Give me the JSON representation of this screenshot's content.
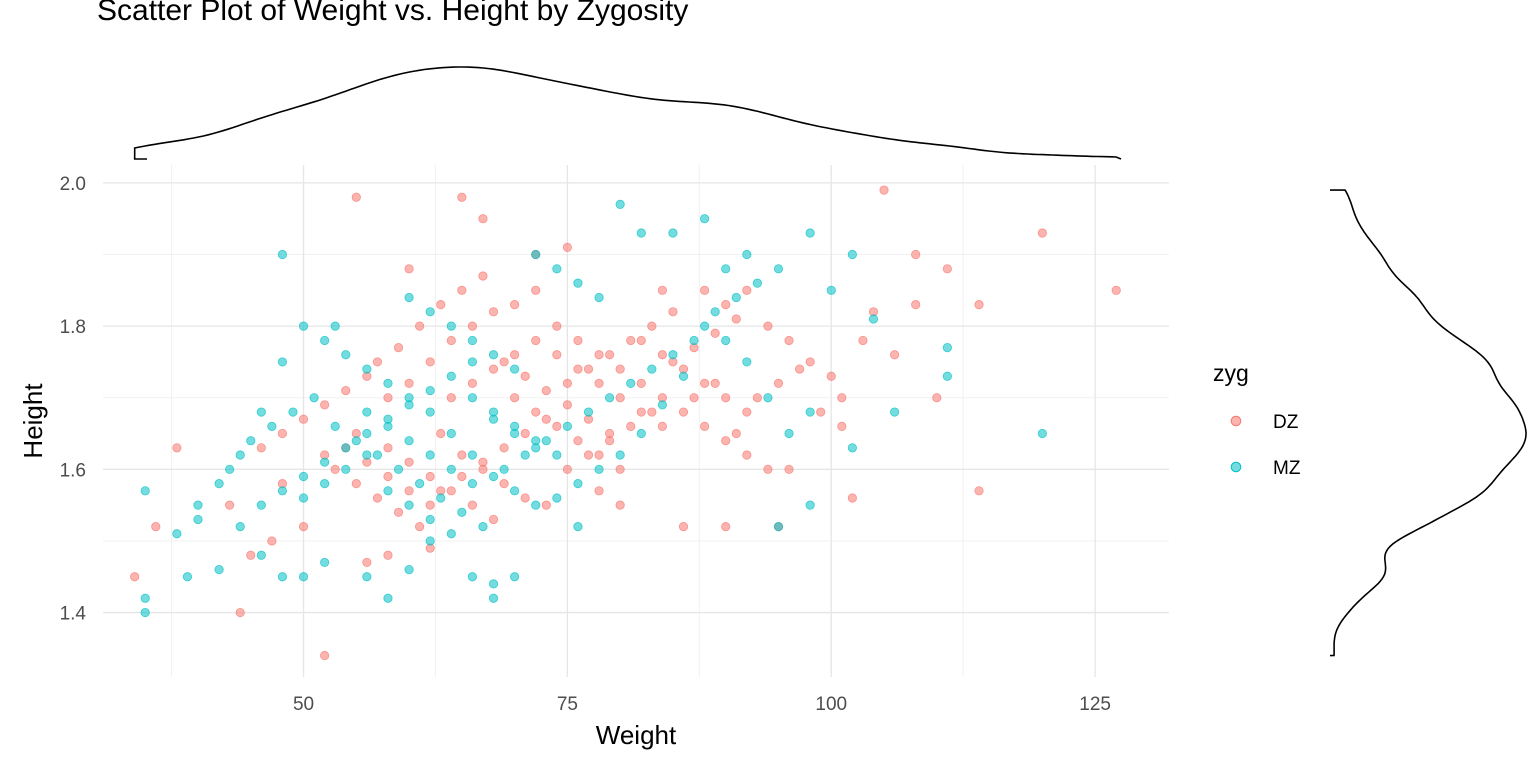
{
  "chart_data": {
    "type": "scatter",
    "title": "Scatter Plot of Weight vs. Height by Zygosity",
    "xlabel": "Weight",
    "ylabel": "Height",
    "xlim": [
      31,
      132
    ],
    "ylim": [
      1.31,
      2.025
    ],
    "x_ticks": [
      50,
      75,
      100,
      125
    ],
    "x_tick_labels": [
      "50",
      "75",
      "100",
      "125"
    ],
    "y_ticks": [
      1.4,
      1.6,
      1.8,
      2.0
    ],
    "y_tick_labels": [
      "1.4",
      "1.6",
      "1.8",
      "2.0"
    ],
    "grid": true,
    "legend": {
      "title": "zyg",
      "position": "right"
    },
    "marginal_densities": {
      "top": "Weight",
      "right": "Height"
    },
    "series": [
      {
        "name": "DZ",
        "color": "#F8766D",
        "points": [
          [
            34,
            1.45
          ],
          [
            36,
            1.52
          ],
          [
            38,
            1.63
          ],
          [
            44,
            1.4
          ],
          [
            52,
            1.34
          ],
          [
            55,
            1.98
          ],
          [
            60,
            1.88
          ],
          [
            65,
            1.98
          ],
          [
            67,
            1.95
          ],
          [
            72,
            1.9
          ],
          [
            75,
            1.91
          ],
          [
            84,
            1.85
          ],
          [
            88,
            1.85
          ],
          [
            90,
            1.83
          ],
          [
            92,
            1.85
          ],
          [
            94,
            1.8
          ],
          [
            96,
            1.78
          ],
          [
            98,
            1.75
          ],
          [
            100,
            1.73
          ],
          [
            101,
            1.7
          ],
          [
            105,
            1.99
          ],
          [
            108,
            1.9
          ],
          [
            111,
            1.88
          ],
          [
            114,
            1.83
          ],
          [
            120,
            1.93
          ],
          [
            127,
            1.85
          ],
          [
            103,
            1.78
          ],
          [
            104,
            1.82
          ],
          [
            106,
            1.76
          ],
          [
            102,
            1.56
          ],
          [
            114,
            1.57
          ],
          [
            110,
            1.7
          ],
          [
            108,
            1.83
          ],
          [
            96,
            1.6
          ],
          [
            95,
            1.52
          ],
          [
            90,
            1.52
          ],
          [
            86,
            1.52
          ],
          [
            80,
            1.55
          ],
          [
            78,
            1.57
          ],
          [
            62,
            1.49
          ],
          [
            58,
            1.48
          ],
          [
            56,
            1.47
          ],
          [
            50,
            1.52
          ],
          [
            47,
            1.5
          ],
          [
            45,
            1.48
          ],
          [
            43,
            1.55
          ],
          [
            48,
            1.58
          ],
          [
            52,
            1.62
          ],
          [
            55,
            1.65
          ],
          [
            58,
            1.7
          ],
          [
            60,
            1.72
          ],
          [
            62,
            1.75
          ],
          [
            64,
            1.78
          ],
          [
            66,
            1.8
          ],
          [
            68,
            1.82
          ],
          [
            70,
            1.83
          ],
          [
            72,
            1.85
          ],
          [
            74,
            1.8
          ],
          [
            76,
            1.78
          ],
          [
            78,
            1.76
          ],
          [
            80,
            1.74
          ],
          [
            82,
            1.72
          ],
          [
            84,
            1.7
          ],
          [
            86,
            1.68
          ],
          [
            88,
            1.66
          ],
          [
            90,
            1.64
          ],
          [
            92,
            1.62
          ],
          [
            94,
            1.6
          ],
          [
            63,
            1.65
          ],
          [
            65,
            1.62
          ],
          [
            67,
            1.6
          ],
          [
            69,
            1.58
          ],
          [
            71,
            1.56
          ],
          [
            73,
            1.55
          ],
          [
            75,
            1.6
          ],
          [
            77,
            1.62
          ],
          [
            79,
            1.64
          ],
          [
            81,
            1.66
          ],
          [
            83,
            1.68
          ],
          [
            85,
            1.75
          ],
          [
            87,
            1.77
          ],
          [
            89,
            1.79
          ],
          [
            91,
            1.81
          ],
          [
            93,
            1.7
          ],
          [
            95,
            1.72
          ],
          [
            97,
            1.74
          ],
          [
            99,
            1.68
          ],
          [
            101,
            1.66
          ],
          [
            57,
            1.75
          ],
          [
            59,
            1.77
          ],
          [
            61,
            1.8
          ],
          [
            63,
            1.83
          ],
          [
            65,
            1.85
          ],
          [
            67,
            1.87
          ],
          [
            69,
            1.75
          ],
          [
            71,
            1.73
          ],
          [
            73,
            1.71
          ],
          [
            75,
            1.69
          ],
          [
            77,
            1.67
          ],
          [
            79,
            1.65
          ],
          [
            53,
            1.6
          ],
          [
            55,
            1.58
          ],
          [
            57,
            1.56
          ],
          [
            59,
            1.54
          ],
          [
            61,
            1.52
          ],
          [
            63,
            1.57
          ],
          [
            65,
            1.59
          ],
          [
            67,
            1.61
          ],
          [
            69,
            1.63
          ],
          [
            71,
            1.65
          ],
          [
            73,
            1.67
          ],
          [
            75,
            1.72
          ],
          [
            77,
            1.74
          ],
          [
            79,
            1.76
          ],
          [
            81,
            1.78
          ],
          [
            83,
            1.8
          ],
          [
            85,
            1.82
          ],
          [
            87,
            1.7
          ],
          [
            89,
            1.72
          ],
          [
            91,
            1.65
          ],
          [
            46,
            1.63
          ],
          [
            48,
            1.65
          ],
          [
            50,
            1.67
          ],
          [
            52,
            1.69
          ],
          [
            54,
            1.71
          ],
          [
            56,
            1.73
          ],
          [
            58,
            1.63
          ],
          [
            60,
            1.61
          ],
          [
            62,
            1.59
          ],
          [
            64,
            1.57
          ],
          [
            66,
            1.55
          ],
          [
            68,
            1.53
          ],
          [
            70,
            1.7
          ],
          [
            72,
            1.68
          ],
          [
            74,
            1.66
          ],
          [
            76,
            1.64
          ],
          [
            78,
            1.62
          ],
          [
            80,
            1.6
          ],
          [
            82,
            1.78
          ],
          [
            84,
            1.76
          ],
          [
            86,
            1.74
          ],
          [
            88,
            1.72
          ],
          [
            90,
            1.7
          ],
          [
            92,
            1.68
          ],
          [
            54,
            1.63
          ],
          [
            56,
            1.61
          ],
          [
            58,
            1.59
          ],
          [
            60,
            1.57
          ],
          [
            62,
            1.55
          ],
          [
            64,
            1.7
          ],
          [
            66,
            1.72
          ],
          [
            68,
            1.74
          ],
          [
            70,
            1.76
          ],
          [
            72,
            1.78
          ],
          [
            74,
            1.76
          ],
          [
            76,
            1.74
          ],
          [
            78,
            1.72
          ],
          [
            80,
            1.7
          ],
          [
            82,
            1.68
          ],
          [
            84,
            1.66
          ]
        ]
      },
      {
        "name": "MZ",
        "color": "#00BFC4",
        "points": [
          [
            35,
            1.57
          ],
          [
            35,
            1.42
          ],
          [
            35,
            1.4
          ],
          [
            39,
            1.45
          ],
          [
            40,
            1.55
          ],
          [
            42,
            1.46
          ],
          [
            44,
            1.52
          ],
          [
            46,
            1.48
          ],
          [
            48,
            1.9
          ],
          [
            48,
            1.45
          ],
          [
            50,
            1.45
          ],
          [
            52,
            1.47
          ],
          [
            53,
            1.8
          ],
          [
            56,
            1.45
          ],
          [
            58,
            1.42
          ],
          [
            60,
            1.46
          ],
          [
            62,
            1.5
          ],
          [
            66,
            1.45
          ],
          [
            68,
            1.44
          ],
          [
            68,
            1.42
          ],
          [
            70,
            1.45
          ],
          [
            76,
            1.52
          ],
          [
            80,
            1.97
          ],
          [
            82,
            1.93
          ],
          [
            85,
            1.93
          ],
          [
            88,
            1.95
          ],
          [
            90,
            1.88
          ],
          [
            92,
            1.9
          ],
          [
            95,
            1.52
          ],
          [
            98,
            1.93
          ],
          [
            98,
            1.55
          ],
          [
            100,
            1.85
          ],
          [
            102,
            1.9
          ],
          [
            104,
            1.81
          ],
          [
            106,
            1.68
          ],
          [
            102,
            1.63
          ],
          [
            111,
            1.77
          ],
          [
            111,
            1.73
          ],
          [
            120,
            1.65
          ],
          [
            98,
            1.68
          ],
          [
            96,
            1.65
          ],
          [
            94,
            1.7
          ],
          [
            92,
            1.75
          ],
          [
            90,
            1.78
          ],
          [
            88,
            1.8
          ],
          [
            86,
            1.73
          ],
          [
            84,
            1.69
          ],
          [
            82,
            1.65
          ],
          [
            80,
            1.62
          ],
          [
            78,
            1.6
          ],
          [
            76,
            1.58
          ],
          [
            74,
            1.56
          ],
          [
            72,
            1.55
          ],
          [
            70,
            1.57
          ],
          [
            68,
            1.59
          ],
          [
            66,
            1.62
          ],
          [
            64,
            1.65
          ],
          [
            62,
            1.68
          ],
          [
            60,
            1.7
          ],
          [
            58,
            1.72
          ],
          [
            56,
            1.74
          ],
          [
            54,
            1.76
          ],
          [
            52,
            1.78
          ],
          [
            50,
            1.8
          ],
          [
            48,
            1.75
          ],
          [
            46,
            1.68
          ],
          [
            44,
            1.62
          ],
          [
            42,
            1.58
          ],
          [
            40,
            1.53
          ],
          [
            38,
            1.51
          ],
          [
            43,
            1.6
          ],
          [
            45,
            1.64
          ],
          [
            47,
            1.66
          ],
          [
            49,
            1.68
          ],
          [
            51,
            1.7
          ],
          [
            53,
            1.66
          ],
          [
            55,
            1.64
          ],
          [
            57,
            1.62
          ],
          [
            59,
            1.6
          ],
          [
            61,
            1.58
          ],
          [
            63,
            1.56
          ],
          [
            65,
            1.54
          ],
          [
            67,
            1.52
          ],
          [
            69,
            1.6
          ],
          [
            71,
            1.62
          ],
          [
            73,
            1.64
          ],
          [
            75,
            1.66
          ],
          [
            77,
            1.68
          ],
          [
            79,
            1.7
          ],
          [
            81,
            1.72
          ],
          [
            83,
            1.74
          ],
          [
            85,
            1.76
          ],
          [
            87,
            1.78
          ],
          [
            89,
            1.82
          ],
          [
            91,
            1.84
          ],
          [
            93,
            1.86
          ],
          [
            95,
            1.88
          ],
          [
            72,
            1.9
          ],
          [
            74,
            1.88
          ],
          [
            76,
            1.86
          ],
          [
            78,
            1.84
          ],
          [
            60,
            1.84
          ],
          [
            62,
            1.82
          ],
          [
            64,
            1.8
          ],
          [
            66,
            1.78
          ],
          [
            68,
            1.76
          ],
          [
            70,
            1.74
          ],
          [
            56,
            1.68
          ],
          [
            58,
            1.66
          ],
          [
            60,
            1.64
          ],
          [
            62,
            1.62
          ],
          [
            64,
            1.6
          ],
          [
            66,
            1.58
          ],
          [
            50,
            1.56
          ],
          [
            52,
            1.58
          ],
          [
            54,
            1.6
          ],
          [
            56,
            1.62
          ],
          [
            58,
            1.57
          ],
          [
            60,
            1.55
          ],
          [
            62,
            1.53
          ],
          [
            64,
            1.51
          ],
          [
            66,
            1.7
          ],
          [
            68,
            1.68
          ],
          [
            70,
            1.66
          ],
          [
            72,
            1.64
          ],
          [
            74,
            1.62
          ],
          [
            46,
            1.55
          ],
          [
            48,
            1.57
          ],
          [
            50,
            1.59
          ],
          [
            52,
            1.61
          ],
          [
            54,
            1.63
          ],
          [
            56,
            1.65
          ],
          [
            58,
            1.67
          ],
          [
            60,
            1.69
          ],
          [
            62,
            1.71
          ],
          [
            64,
            1.73
          ],
          [
            66,
            1.75
          ],
          [
            68,
            1.67
          ],
          [
            70,
            1.65
          ],
          [
            72,
            1.63
          ]
        ]
      }
    ]
  }
}
